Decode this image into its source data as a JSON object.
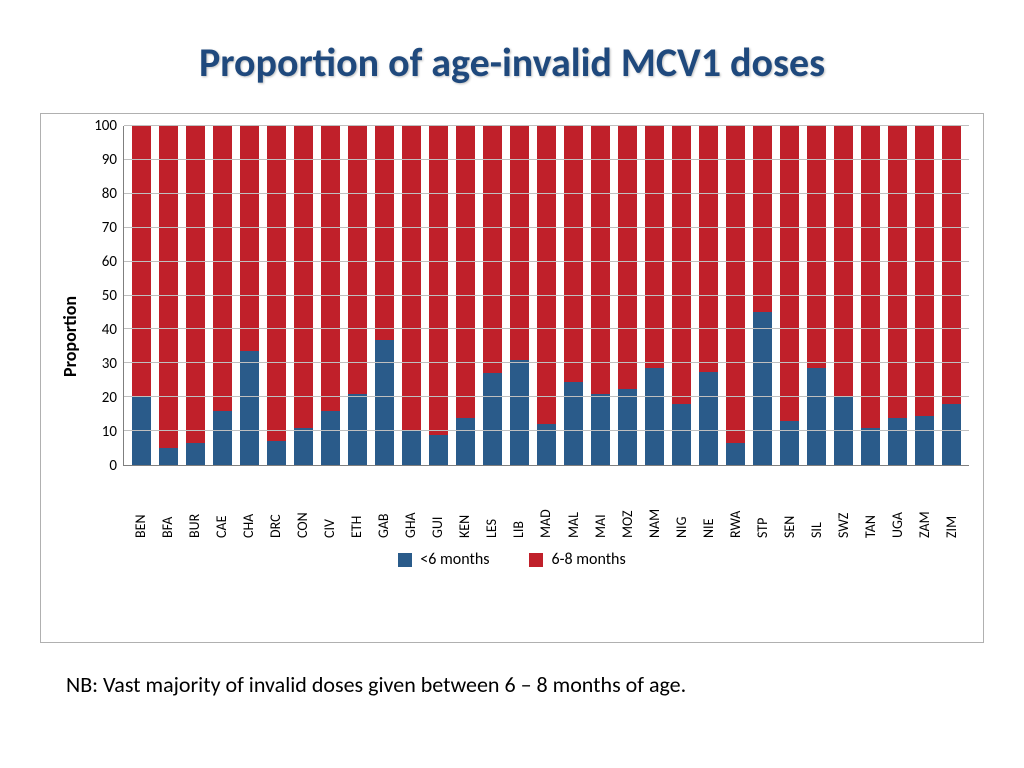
{
  "title": "Proportion of age-invalid MCV1 doses",
  "note": "NB: Vast majority of invalid doses given between 6 – 8 months of age.",
  "chart": {
    "type": "stacked-bar",
    "ylabel": "Proportion",
    "ylim": [
      0,
      100
    ],
    "ytick_step": 10,
    "yticks": [
      0,
      10,
      20,
      30,
      40,
      50,
      60,
      70,
      80,
      90,
      100
    ],
    "grid_color": "#bfbfbf",
    "axis_color": "#7f7f7f",
    "background_color": "#ffffff",
    "series": [
      {
        "name": "<6 months",
        "color": "#2a5b8a"
      },
      {
        "name": "6-8 months",
        "color": "#c0202a"
      }
    ],
    "categories": [
      "BEN",
      "BFA",
      "BUR",
      "CAE",
      "CHA",
      "DRC",
      "CON",
      "CIV",
      "ETH",
      "GAB",
      "GHA",
      "GUI",
      "KEN",
      "LES",
      "LIB",
      "MAD",
      "MAL",
      "MAI",
      "MOZ",
      "NAM",
      "NIG",
      "NIE",
      "RWA",
      "STP",
      "SEN",
      "SIL",
      "SWZ",
      "TAN",
      "UGA",
      "ZAM",
      "ZIM"
    ],
    "values_lt6": [
      20,
      5,
      6.5,
      16,
      33.5,
      7,
      11,
      16,
      21,
      37,
      10,
      9,
      14,
      27,
      31,
      12,
      24.5,
      21,
      22.5,
      28.5,
      18,
      27.5,
      6.5,
      45,
      13,
      28.5,
      20,
      11,
      14,
      14.5,
      18
    ],
    "bar_width": 0.68,
    "label_fontsize": 15,
    "tick_fontsize": 14,
    "title_fontsize": 40
  }
}
